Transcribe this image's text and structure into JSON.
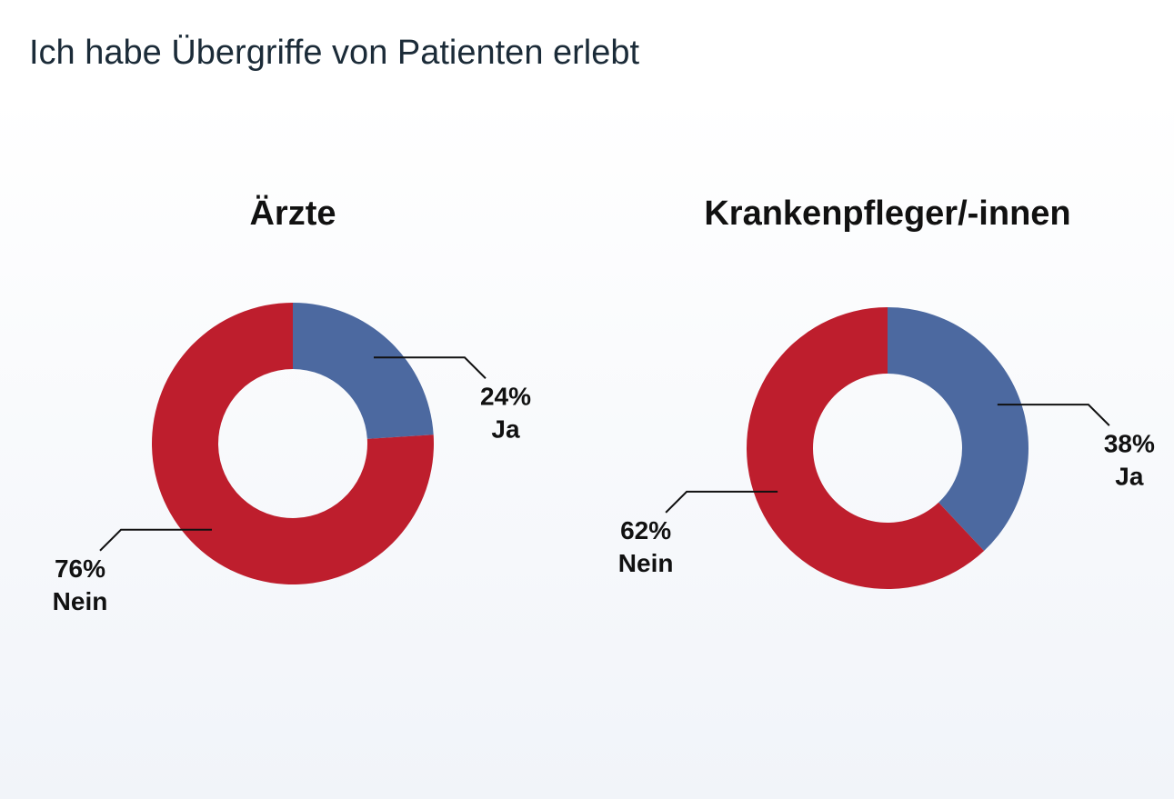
{
  "title": "Ich habe Übergriffe von Patienten erlebt",
  "chart_data": [
    {
      "type": "donut",
      "title": "Ärzte",
      "categories": [
        "Ja",
        "Nein"
      ],
      "values": [
        24,
        76
      ],
      "value_labels": [
        "24%",
        "76%"
      ],
      "colors": [
        "#4c69a0",
        "#be1e2d"
      ]
    },
    {
      "type": "donut",
      "title": "Krankenpfleger/-innen",
      "categories": [
        "Ja",
        "Nein"
      ],
      "values": [
        38,
        62
      ],
      "value_labels": [
        "38%",
        "62%"
      ],
      "colors": [
        "#4c69a0",
        "#be1e2d"
      ]
    }
  ]
}
